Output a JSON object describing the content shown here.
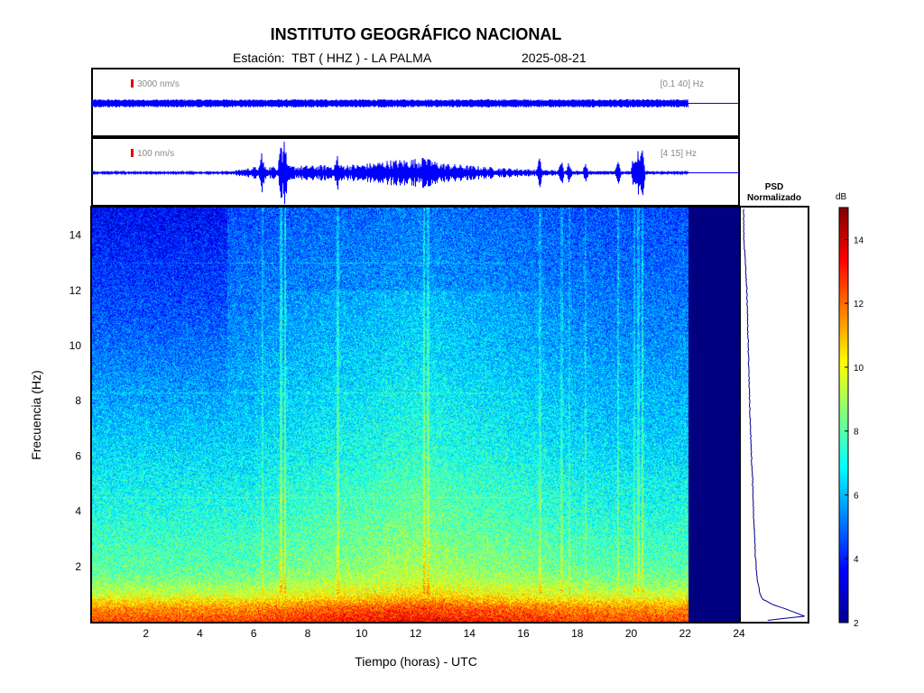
{
  "header": {
    "title": "INSTITUTO GEOGRÁFICO NACIONAL",
    "station": "Estación:  TBT ( HHZ ) - LA PALMA",
    "date": "2025-08-21"
  },
  "colors": {
    "trace": "#0000ff",
    "scale_marker": "#dd0000",
    "no_data": "#000080",
    "psd_line": "#00008b"
  },
  "chart_data": [
    {
      "type": "line",
      "name": "seismogram-broadband",
      "scale_label": "3000 nm/s",
      "filter_label": "[0.1 40] Hz",
      "x_unit": "hours UTC",
      "xlim": [
        0,
        24
      ],
      "data_end_hour": 22.1,
      "relative_amplitude_envelope": {
        "x": [
          0,
          22.1
        ],
        "y": [
          0.12,
          0.12
        ]
      }
    },
    {
      "type": "line",
      "name": "seismogram-filtered",
      "scale_label": "100 nm/s",
      "filter_label": "[4 15] Hz",
      "x_unit": "hours UTC",
      "xlim": [
        0,
        24
      ],
      "data_end_hour": 22.1,
      "relative_amplitude_envelope": {
        "x": [
          0,
          5,
          6,
          8,
          10,
          11,
          12.3,
          13,
          14,
          15,
          16.5,
          18,
          20,
          22.1
        ],
        "y": [
          0.03,
          0.03,
          0.18,
          0.22,
          0.26,
          0.38,
          0.45,
          0.3,
          0.22,
          0.16,
          0.1,
          0.06,
          0.04,
          0.03
        ]
      },
      "transients_hours": [
        6.3,
        7.0,
        7.15,
        9.1,
        12.3,
        12.45,
        16.6,
        17.4,
        17.7,
        18.3,
        19.5,
        20.1,
        20.25,
        20.4
      ],
      "transient_rel_amp": [
        0.7,
        1.2,
        1.2,
        0.6,
        0.6,
        0.5,
        0.5,
        0.5,
        0.4,
        0.4,
        0.5,
        0.6,
        0.8,
        0.9
      ]
    },
    {
      "type": "heatmap",
      "name": "spectrogram",
      "xlabel": "Tiempo (horas) - UTC",
      "ylabel": "Frecuencia  (Hz)",
      "xlim": [
        0,
        24
      ],
      "ylim": [
        0,
        15
      ],
      "x_ticks": [
        2,
        4,
        6,
        8,
        10,
        12,
        14,
        16,
        18,
        20,
        22,
        24
      ],
      "y_ticks": [
        2,
        4,
        6,
        8,
        10,
        12,
        14
      ],
      "data_end_hour": 22.1,
      "no_data_value_db": 2,
      "noise_floor_profile": {
        "freq_hz": [
          0,
          0.5,
          1,
          1.5,
          2,
          3,
          4,
          5,
          6,
          8,
          10,
          12,
          14,
          15
        ],
        "db": [
          12.5,
          11.5,
          9.5,
          8.5,
          8,
          7.6,
          7.2,
          6.9,
          6.5,
          6,
          5.5,
          5.1,
          4.8,
          4.6
        ]
      },
      "daytime_excess": {
        "start_hour": 6,
        "end_hour": 20,
        "peak_hour": 12,
        "extra_db": 1.0,
        "quiet_morning_hours": [
          0,
          5
        ],
        "quiet_morning_reduction_db": 1.0
      },
      "vertical_lines_hours": [
        6.3,
        7.0,
        7.15,
        9.1,
        12.3,
        12.45,
        16.6,
        17.4,
        17.7,
        18.3,
        19.5,
        20.1,
        20.25,
        20.4
      ],
      "vertical_lines_extra_db": [
        1.2,
        2.0,
        2.0,
        1.5,
        1.8,
        1.5,
        1.2,
        1.2,
        1.0,
        1.0,
        1.5,
        1.2,
        1.5,
        1.8
      ],
      "horizontal_bands_hz": [
        4.5,
        8.3,
        13.0
      ]
    },
    {
      "type": "line",
      "name": "psd-normalizado",
      "title": "PSD Normalizado",
      "ylim": [
        0,
        15
      ],
      "points": {
        "freq_hz": [
          0.05,
          0.2,
          0.4,
          0.6,
          0.8,
          1,
          1.5,
          2,
          3,
          4,
          5,
          6,
          8,
          10,
          12,
          14,
          15
        ],
        "normalized_power": [
          0.4,
          0.97,
          0.75,
          0.5,
          0.33,
          0.28,
          0.24,
          0.22,
          0.2,
          0.18,
          0.17,
          0.15,
          0.12,
          0.1,
          0.08,
          0.03,
          0.03
        ]
      }
    },
    {
      "type": "heatmap",
      "name": "colorbar",
      "unit": "dB",
      "range": [
        2,
        15
      ],
      "ticks": [
        2,
        4,
        6,
        8,
        10,
        12,
        14
      ],
      "colormap": "jet"
    }
  ]
}
